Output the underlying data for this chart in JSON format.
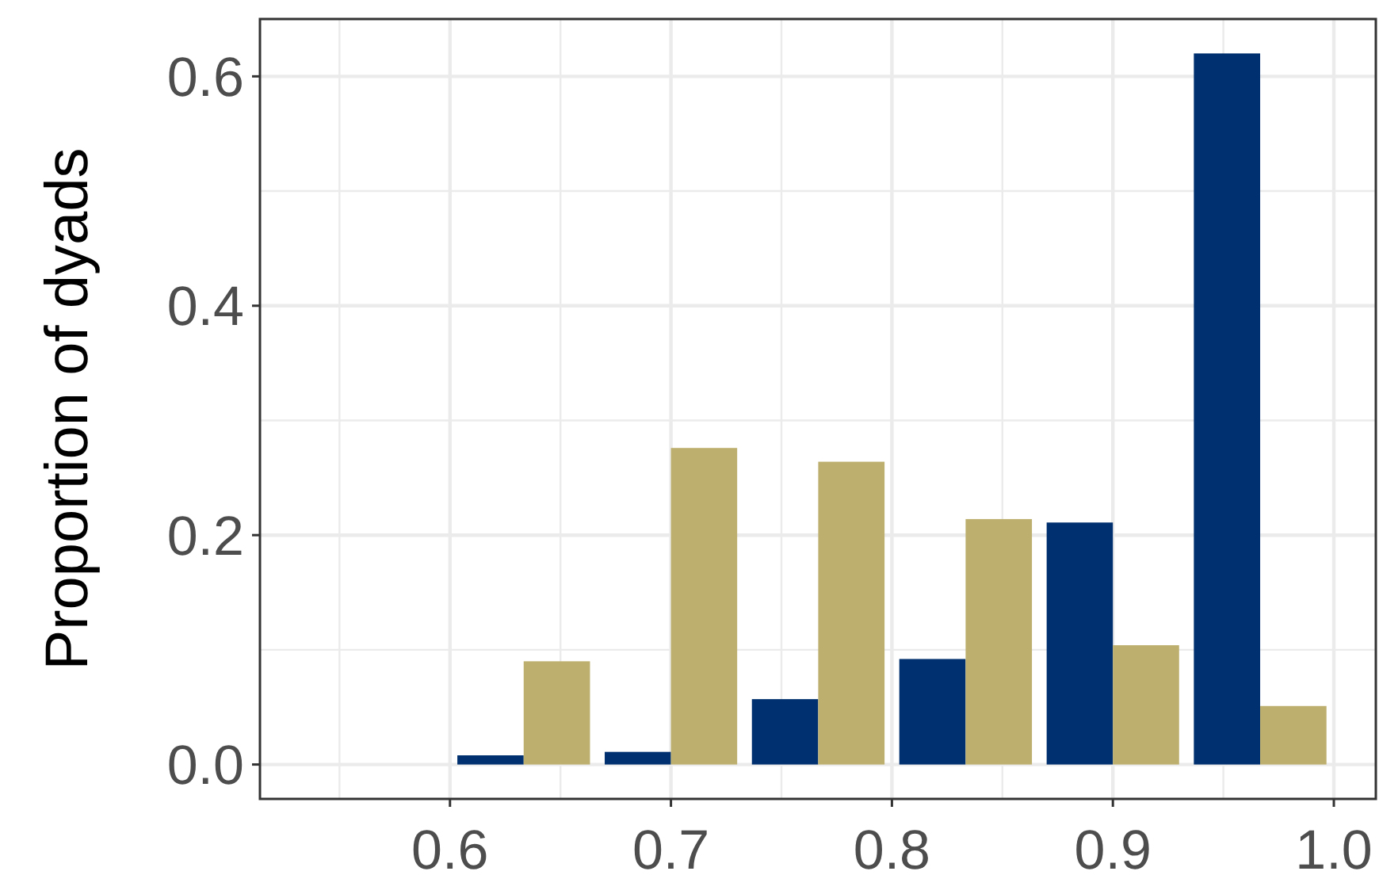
{
  "chart_data": {
    "type": "histogram",
    "ylabel": "Proportion of dyads",
    "bins": [
      0.6,
      0.6667,
      0.7333,
      0.8,
      0.8667,
      0.9333,
      1.0
    ],
    "series": [
      {
        "color": "#00306f",
        "values": [
          0.008,
          0.011,
          0.057,
          0.092,
          0.211,
          0.62
        ]
      },
      {
        "color": "#bdaf6e",
        "values": [
          0.09,
          0.276,
          0.264,
          0.214,
          0.104,
          0.051
        ]
      }
    ],
    "xlim": [
      0.514,
      1.019
    ],
    "ylim": [
      -0.03,
      0.65
    ],
    "xticks": [
      {
        "value": 0.55,
        "label": null
      },
      0.6,
      {
        "value": 0.65,
        "label": null
      },
      0.7,
      {
        "value": 0.75,
        "label": null
      },
      0.8,
      {
        "value": 0.85,
        "label": null
      },
      0.9,
      {
        "value": 0.95,
        "label": null
      },
      {
        "value": 1.0,
        "label": "1.0"
      }
    ],
    "yticks": [
      {
        "value": 0,
        "label": "0.0"
      },
      {
        "value": 0.1,
        "label": null
      },
      0.2,
      {
        "value": 0.3,
        "label": null
      },
      0.4,
      {
        "value": 0.5,
        "label": null
      },
      0.6
    ],
    "grid": true
  }
}
